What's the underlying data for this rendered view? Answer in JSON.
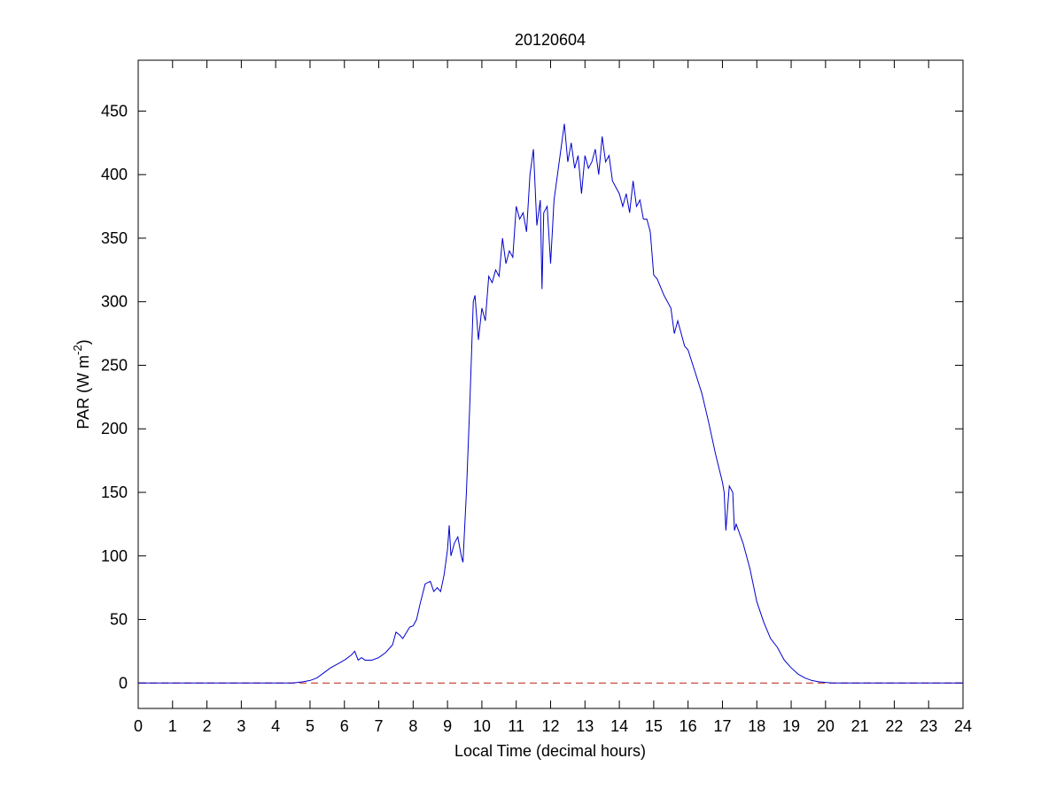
{
  "chart_data": {
    "type": "line",
    "title": "20120604",
    "xlabel": "Local Time (decimal hours)",
    "ylabel": [
      "PAR (W m",
      "-2",
      ")"
    ],
    "xlim": [
      0,
      24
    ],
    "ylim": [
      -20,
      490
    ],
    "xticks": [
      0,
      1,
      2,
      3,
      4,
      5,
      6,
      7,
      8,
      9,
      10,
      11,
      12,
      13,
      14,
      15,
      16,
      17,
      18,
      19,
      20,
      21,
      22,
      23,
      24
    ],
    "yticks": [
      0,
      50,
      100,
      150,
      200,
      250,
      300,
      350,
      400,
      450
    ],
    "reference_line": {
      "y": 0,
      "color": "#c0392b",
      "dashed": true
    },
    "series": [
      {
        "color": "#0000cc",
        "x": [
          0,
          4.5,
          4.8,
          5.0,
          5.2,
          5.4,
          5.6,
          5.8,
          6.0,
          6.2,
          6.3,
          6.4,
          6.5,
          6.6,
          6.8,
          7.0,
          7.2,
          7.4,
          7.5,
          7.6,
          7.7,
          7.9,
          8.0,
          8.1,
          8.2,
          8.35,
          8.5,
          8.6,
          8.7,
          8.8,
          8.9,
          9.0,
          9.05,
          9.1,
          9.2,
          9.3,
          9.4,
          9.45,
          9.55,
          9.65,
          9.75,
          9.8,
          9.9,
          10.0,
          10.1,
          10.2,
          10.3,
          10.4,
          10.5,
          10.6,
          10.7,
          10.8,
          10.9,
          11.0,
          11.1,
          11.2,
          11.3,
          11.4,
          11.5,
          11.6,
          11.7,
          11.75,
          11.8,
          11.9,
          12.0,
          12.1,
          12.2,
          12.3,
          12.4,
          12.5,
          12.6,
          12.7,
          12.8,
          12.9,
          13.0,
          13.1,
          13.2,
          13.3,
          13.4,
          13.5,
          13.6,
          13.7,
          13.8,
          14.0,
          14.1,
          14.2,
          14.3,
          14.4,
          14.5,
          14.6,
          14.7,
          14.8,
          14.9,
          15.0,
          15.1,
          15.3,
          15.5,
          15.6,
          15.7,
          15.9,
          16.0,
          16.2,
          16.4,
          16.6,
          16.8,
          17.0,
          17.05,
          17.1,
          17.2,
          17.3,
          17.35,
          17.4,
          17.6,
          17.8,
          18.0,
          18.2,
          18.4,
          18.6,
          18.8,
          19.0,
          19.2,
          19.4,
          19.6,
          19.8,
          20.0,
          20.2,
          24
        ],
        "values": [
          0,
          0,
          1,
          2,
          4,
          8,
          12,
          15,
          18,
          22,
          25,
          18,
          20,
          18,
          18,
          20,
          24,
          30,
          40,
          38,
          35,
          44,
          45,
          50,
          62,
          78,
          80,
          72,
          75,
          72,
          85,
          105,
          124,
          100,
          110,
          115,
          100,
          95,
          150,
          220,
          300,
          305,
          270,
          295,
          285,
          320,
          315,
          325,
          320,
          350,
          330,
          340,
          335,
          375,
          365,
          370,
          355,
          400,
          420,
          360,
          380,
          310,
          370,
          375,
          330,
          380,
          400,
          420,
          440,
          410,
          425,
          405,
          415,
          385,
          415,
          405,
          410,
          420,
          400,
          430,
          410,
          415,
          395,
          385,
          375,
          385,
          370,
          395,
          375,
          380,
          365,
          365,
          355,
          321,
          318,
          305,
          295,
          275,
          285,
          265,
          262,
          245,
          228,
          205,
          180,
          158,
          150,
          120,
          155,
          150,
          120,
          125,
          110,
          90,
          64,
          48,
          35,
          28,
          18,
          12,
          7,
          4,
          2,
          1,
          0.5,
          0,
          0
        ]
      }
    ]
  }
}
